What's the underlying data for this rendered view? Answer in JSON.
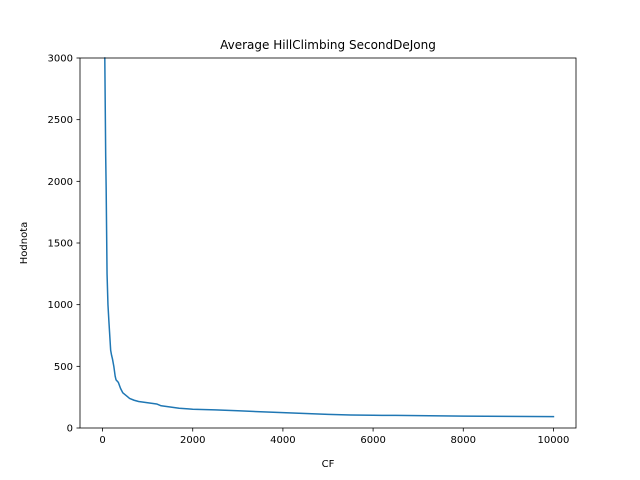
{
  "chart_data": {
    "type": "line",
    "title": "Average HillClimbing SecondDeJong",
    "xlabel": "CF",
    "ylabel": "Hodnota",
    "xlim": [
      -500,
      10500
    ],
    "ylim": [
      0,
      3000
    ],
    "xticks": [
      0,
      2000,
      4000,
      6000,
      8000,
      10000
    ],
    "yticks": [
      0,
      500,
      1000,
      1500,
      2000,
      2500,
      3000
    ],
    "grid": false,
    "legend": "none",
    "series": [
      {
        "color": "#1f77b4",
        "x": [
          50,
          60,
          70,
          80,
          90,
          100,
          120,
          140,
          160,
          180,
          200,
          220,
          250,
          280,
          300,
          350,
          400,
          450,
          500,
          600,
          700,
          800,
          900,
          1000,
          1100,
          1200,
          1300,
          1500,
          1700,
          1900,
          2000,
          2200,
          2500,
          3000,
          3500,
          4000,
          4500,
          5000,
          5500,
          6000,
          6500,
          7000,
          7500,
          8000,
          8500,
          9000,
          9500,
          10000
        ],
        "y": [
          3000,
          2600,
          2200,
          1950,
          1600,
          1250,
          1000,
          870,
          750,
          630,
          590,
          560,
          500,
          420,
          390,
          370,
          320,
          285,
          270,
          240,
          225,
          215,
          210,
          205,
          200,
          195,
          180,
          170,
          160,
          155,
          152,
          150,
          147,
          140,
          132,
          125,
          118,
          110,
          105,
          103,
          102,
          100,
          98,
          96,
          95,
          94,
          93,
          92
        ]
      }
    ]
  }
}
